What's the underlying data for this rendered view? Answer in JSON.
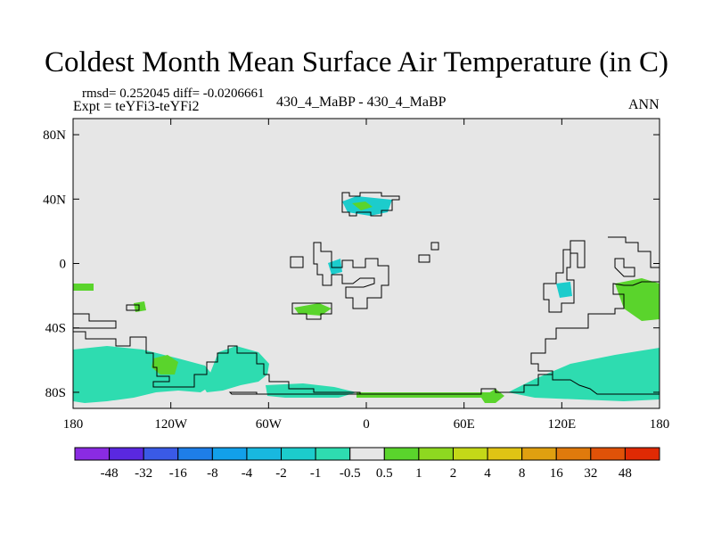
{
  "header": {
    "title": "Coldest Month Mean Surface Air Temperature (in C)",
    "stats": "rmsd= 0.252045 diff= -0.0206661",
    "expt": "Expt = teYFi3-teYFi2",
    "case": "430_4_MaBP - 430_4_MaBP",
    "season": "ANN"
  },
  "chart_data": {
    "type": "heatmap",
    "title": "Coldest Month Mean Surface Air Temperature (in C)",
    "xlabel": "",
    "ylabel": "",
    "xlim": [
      -180,
      180
    ],
    "ylim": [
      -90,
      90
    ],
    "x_ticks": [
      {
        "value": -180,
        "label": "180"
      },
      {
        "value": -120,
        "label": "120W"
      },
      {
        "value": -60,
        "label": "60W"
      },
      {
        "value": 0,
        "label": "0"
      },
      {
        "value": 60,
        "label": "60E"
      },
      {
        "value": 120,
        "label": "120E"
      },
      {
        "value": 180,
        "label": "180"
      }
    ],
    "y_ticks": [
      {
        "value": 80,
        "label": "80N"
      },
      {
        "value": 40,
        "label": "40N"
      },
      {
        "value": 0,
        "label": "0"
      },
      {
        "value": -40,
        "label": "40S"
      },
      {
        "value": -80,
        "label": "80S"
      }
    ],
    "background_value_range": "-0.5 to 0.5",
    "colorbar": {
      "colors": [
        "#8a2be2",
        "#5a28e0",
        "#3a5ae6",
        "#1e7ee8",
        "#12a0ea",
        "#18b8e0",
        "#1ccccc",
        "#2edcb0",
        "#e6e6e6",
        "#5ad42c",
        "#8ed820",
        "#c4d818",
        "#e0c414",
        "#e0a010",
        "#e07a0c",
        "#e05208",
        "#e02a04"
      ],
      "labels": [
        "-48",
        "-32",
        "-16",
        "-8",
        "-4",
        "-2",
        "-1",
        "-0.5",
        "0.5",
        "1",
        "2",
        "4",
        "8",
        "16",
        "32",
        "48"
      ]
    },
    "regions": [
      {
        "name": "south-pacific-band",
        "value_class": "-1 to -0.5",
        "lon_range": [
          -180,
          -140
        ],
        "lat_range": [
          -90,
          -60
        ]
      },
      {
        "name": "antarctic-peninsula",
        "value_class": "-1 to -0.5",
        "lon_range": [
          -95,
          -60
        ],
        "lat_range": [
          -80,
          -55
        ]
      },
      {
        "name": "antarctic-west-green",
        "value_class": "0.5 to 1",
        "lon_range": [
          -150,
          -135
        ],
        "lat_range": [
          -70,
          -60
        ]
      },
      {
        "name": "weddell-sea",
        "value_class": "-1 to -0.5",
        "lon_range": [
          -60,
          -30
        ],
        "lat_range": [
          -82,
          -75
        ]
      },
      {
        "name": "east-antarctic-coast",
        "value_class": "-1 to -0.5",
        "lon_range": [
          120,
          180
        ],
        "lat_range": [
          -80,
          -55
        ]
      },
      {
        "name": "east-australia-offshore",
        "value_class": "0.5 to 1",
        "lon_range": [
          155,
          180
        ],
        "lat_range": [
          -40,
          -15
        ]
      },
      {
        "name": "north-africa-box",
        "value_class": "-1 to -0.5",
        "lon_range": [
          -15,
          20
        ],
        "lat_range": [
          30,
          42
        ]
      },
      {
        "name": "east-antarctic-green",
        "value_class": "0.5 to 1",
        "lon_range": [
          70,
          80
        ],
        "lat_range": [
          -84,
          -78
        ]
      }
    ]
  }
}
